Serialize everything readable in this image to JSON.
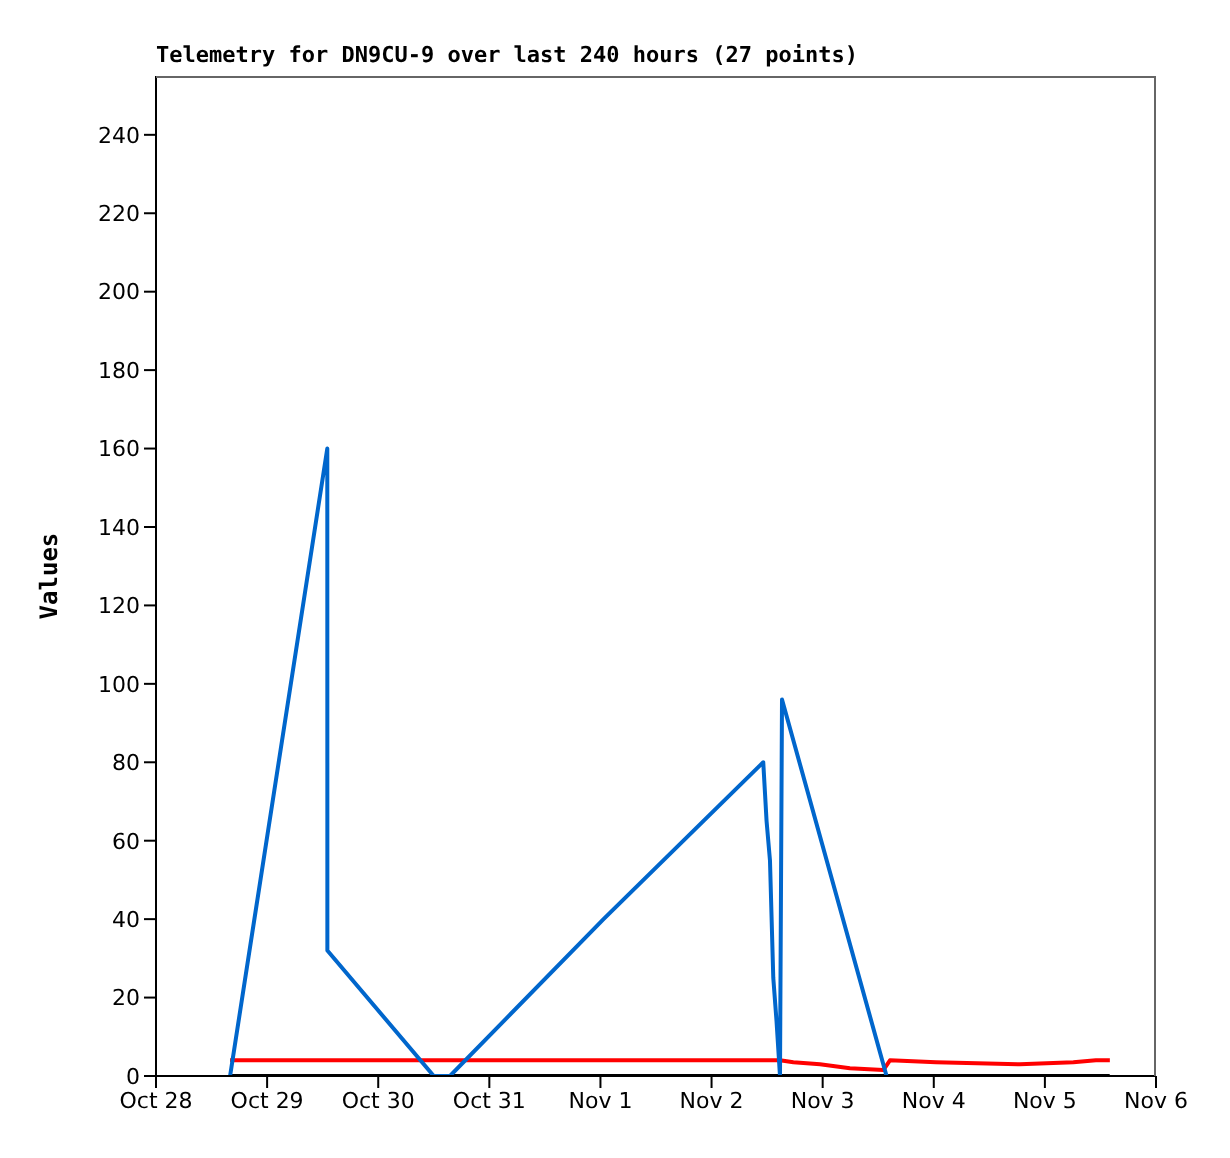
{
  "chart_data": {
    "type": "line",
    "title": "Telemetry for DN9CU-9 over last 240 hours (27 points)",
    "ylabel": "Values",
    "xlim": [
      "--10-28",
      "--11-06"
    ],
    "xticks": [
      {
        "value": "--10-28",
        "label": "Oct 28"
      },
      {
        "value": "--10-29",
        "label": "Oct 29"
      },
      {
        "value": "--10-30",
        "label": "Oct 30"
      },
      {
        "value": "--10-31",
        "label": "Oct 31"
      },
      {
        "value": "--11-01",
        "label": "Nov 1"
      },
      {
        "value": "--11-02",
        "label": "Nov 2"
      },
      {
        "value": "--11-03",
        "label": "Nov 3"
      },
      {
        "value": "--11-04",
        "label": "Nov 4"
      },
      {
        "value": "--11-05",
        "label": "Nov 5"
      },
      {
        "value": "--11-06",
        "label": "Nov 6"
      }
    ],
    "ylim": [
      0,
      255
    ],
    "yticks": [
      0,
      20,
      40,
      60,
      80,
      100,
      120,
      140,
      160,
      180,
      200,
      220,
      240
    ],
    "grid": false,
    "line_style": "solid",
    "series": [
      {
        "color": "#000000",
        "x": [
          "--10-28T16:00",
          "--11-05T14:00"
        ],
        "values": [
          0,
          0
        ]
      },
      {
        "color": "#ff0000",
        "x": [
          "--10-28T16:00",
          "--11-02T14:47",
          "--11-02T17:40",
          "--11-02T23:25",
          "--11-03T05:53",
          "--11-03T13:06",
          "--11-03T14:32",
          "--11-04T00:29",
          "--11-04T18:36",
          "--11-05T06:09",
          "--11-05T11:01",
          "--11-05T14:02"
        ],
        "values": [
          4,
          4,
          3.5,
          3,
          2,
          1.5,
          4,
          3.5,
          3,
          3.5,
          4,
          4
        ]
      },
      {
        "color": "#0066cc",
        "x": [
          "--10-28T16:00",
          "--10-29T13:00",
          "--10-29T13:01",
          "--10-30T12:00",
          "--10-30T15:30",
          "--11-01T00:40",
          "--11-02T11:10",
          "--11-02T11:53",
          "--11-02T12:37",
          "--11-02T13:20",
          "--11-02T14:02",
          "--11-02T14:47",
          "--11-02T15:13",
          "--11-03T13:48"
        ],
        "values": [
          0,
          160,
          32,
          0,
          0,
          40,
          80,
          65,
          55,
          25,
          14,
          0,
          96,
          0
        ]
      }
    ]
  }
}
